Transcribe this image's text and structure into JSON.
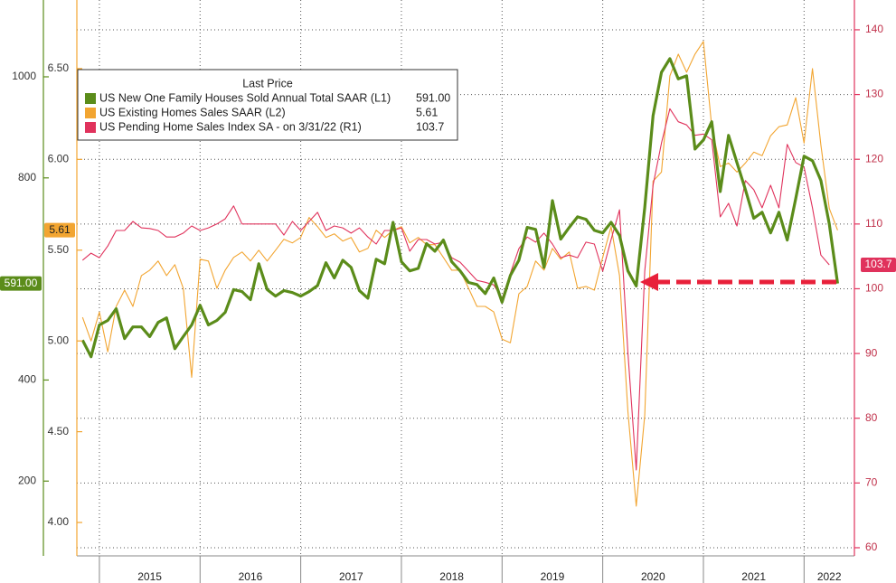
{
  "chart_data": {
    "type": "line",
    "legend_title": "Last Price",
    "x": [
      2014.833,
      2014.917,
      2015,
      2015.083,
      2015.167,
      2015.25,
      2015.333,
      2015.417,
      2015.5,
      2015.583,
      2015.667,
      2015.75,
      2015.833,
      2015.917,
      2016,
      2016.083,
      2016.167,
      2016.25,
      2016.333,
      2016.417,
      2016.5,
      2016.583,
      2016.667,
      2016.75,
      2016.833,
      2016.917,
      2017,
      2017.083,
      2017.167,
      2017.25,
      2017.333,
      2017.417,
      2017.5,
      2017.583,
      2017.667,
      2017.75,
      2017.833,
      2017.917,
      2018,
      2018.083,
      2018.167,
      2018.25,
      2018.333,
      2018.417,
      2018.5,
      2018.583,
      2018.667,
      2018.75,
      2018.833,
      2018.917,
      2019,
      2019.083,
      2019.167,
      2019.25,
      2019.333,
      2019.417,
      2019.5,
      2019.583,
      2019.667,
      2019.75,
      2019.833,
      2019.917,
      2020,
      2020.083,
      2020.167,
      2020.25,
      2020.333,
      2020.417,
      2020.5,
      2020.583,
      2020.667,
      2020.75,
      2020.833,
      2020.917,
      2021,
      2021.083,
      2021.167,
      2021.25,
      2021.333,
      2021.417,
      2021.5,
      2021.583,
      2021.667,
      2021.75,
      2021.833,
      2021.917,
      2022,
      2022.083,
      2022.167,
      2022.25,
      2022.333
    ],
    "xlim": [
      2014.776,
      2022.5
    ],
    "xticks": [
      2015,
      2016,
      2017,
      2018,
      2019,
      2020,
      2021,
      2022
    ],
    "ylim": [
      52,
      1152
    ],
    "yticks": [
      200,
      400,
      800,
      1000
    ],
    "y2lim": [
      3.816,
      6.878
    ],
    "y2ticks": [
      {
        "value": 4.0,
        "label": "4.00"
      },
      {
        "value": 4.5,
        "label": "4.50"
      },
      {
        "value": 5.0,
        "label": "5.00"
      },
      {
        "value": 5.5,
        "label": "5.50"
      },
      {
        "value": 6.0,
        "label": "6.00"
      },
      {
        "value": 6.5,
        "label": "6.50"
      }
    ],
    "y3lim": [
      58.74,
      144.6
    ],
    "y3ticks": [
      60,
      70,
      80,
      90,
      100,
      110,
      120,
      130,
      140
    ],
    "grid": true,
    "series": [
      {
        "name": "US New One Family Houses Sold Annual Total SAAR  (L1)",
        "last_price": "591.00",
        "color": "#5b8c1a",
        "axis": "y",
        "values": [
          479,
          446,
          509,
          518,
          541,
          482,
          505,
          505,
          486,
          514,
          523,
          462,
          486,
          509,
          548,
          509,
          518,
          534,
          579,
          575,
          559,
          630,
          579,
          566,
          577,
          573,
          566,
          575,
          587,
          632,
          602,
          637,
          623,
          577,
          562,
          639,
          630,
          712,
          634,
          616,
          621,
          670,
          655,
          677,
          634,
          616,
          593,
          589,
          571,
          602,
          554,
          607,
          637,
          702,
          698,
          623,
          755,
          679,
          702,
          723,
          718,
          696,
          691,
          712,
          686,
          616,
          586,
          741,
          923,
          1009,
          1036,
          996,
          1002,
          857,
          875,
          911,
          773,
          884,
          830,
          777,
          720,
          732,
          691,
          732,
          677,
          759,
          843,
          834,
          795,
          709,
          591
        ]
      },
      {
        "name": "US Existing Homes Sales SAAR  (L2)",
        "last_price": "5.61",
        "color": "#f2a531",
        "axis": "y2",
        "values": [
          5.13,
          5.0,
          5.16,
          4.94,
          5.19,
          5.28,
          5.19,
          5.36,
          5.39,
          5.44,
          5.36,
          5.42,
          5.29,
          4.8,
          5.45,
          5.44,
          5.29,
          5.39,
          5.46,
          5.49,
          5.44,
          5.5,
          5.44,
          5.5,
          5.56,
          5.54,
          5.57,
          5.68,
          5.63,
          5.57,
          5.59,
          5.55,
          5.57,
          5.49,
          5.51,
          5.61,
          5.57,
          5.61,
          5.63,
          5.54,
          5.57,
          5.53,
          5.53,
          5.46,
          5.39,
          5.39,
          5.29,
          5.19,
          5.19,
          5.16,
          5.01,
          4.99,
          5.26,
          5.3,
          5.44,
          5.39,
          5.51,
          5.45,
          5.49,
          5.29,
          5.3,
          5.28,
          5.46,
          5.63,
          5.36,
          4.61,
          4.09,
          4.59,
          5.88,
          5.93,
          6.46,
          6.58,
          6.48,
          6.58,
          6.65,
          6.18,
          5.96,
          5.98,
          5.93,
          5.98,
          6.04,
          6.02,
          6.13,
          6.18,
          6.19,
          6.34,
          6.09,
          6.5,
          6.08,
          5.73,
          5.61
        ]
      },
      {
        "name": "US Pending Home Sales Index SA -  on 3/31/22  (R1)",
        "last_price": "103.7",
        "color": "#e0325c",
        "axis": "y3",
        "values": [
          104.4,
          105.5,
          104.8,
          106.6,
          109.0,
          109.0,
          110.4,
          109.4,
          109.3,
          109.0,
          108.0,
          108.0,
          108.6,
          109.7,
          109.0,
          109.4,
          110.0,
          110.8,
          112.8,
          110.0,
          110.0,
          110.0,
          110.0,
          110.0,
          108.3,
          110.4,
          109.0,
          110.4,
          111.8,
          109.0,
          109.7,
          109.4,
          108.6,
          109.4,
          108.0,
          106.9,
          109.0,
          109.0,
          109.4,
          105.8,
          107.6,
          107.6,
          106.9,
          107.2,
          104.8,
          104.1,
          102.7,
          101.3,
          101.0,
          100.6,
          98.5,
          102.4,
          106.2,
          108.0,
          107.2,
          108.6,
          106.9,
          104.8,
          105.2,
          104.8,
          107.2,
          106.9,
          102.7,
          107.6,
          112.2,
          90.1,
          72.0,
          102.7,
          116.0,
          122.5,
          127.8,
          125.8,
          125.3,
          123.7,
          123.9,
          123.0,
          111.1,
          113.2,
          109.7,
          116.7,
          115.3,
          112.5,
          116.0,
          112.5,
          122.3,
          119.5,
          118.8,
          112.5,
          105.2,
          103.7,
          null
        ]
      }
    ]
  }
}
